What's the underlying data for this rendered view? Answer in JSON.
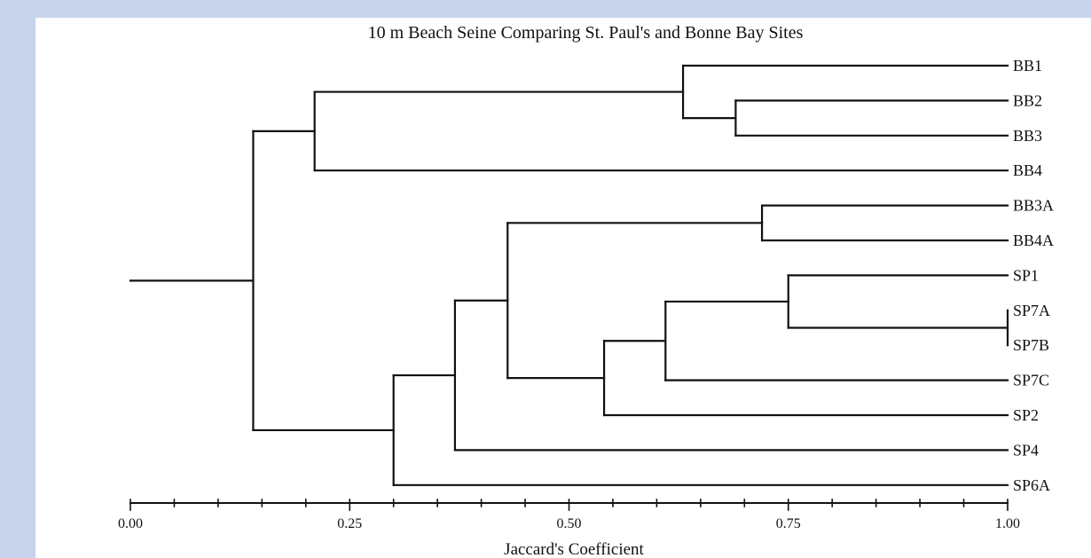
{
  "colors": {
    "background": "#c8d4ec",
    "panel": "#ffffff",
    "ink": "#111111"
  },
  "chart_data": {
    "type": "dendrogram",
    "title": "10 m Beach Seine Comparing St. Paul's and Bonne Bay Sites",
    "xlabel": "Jaccard's Coefficient",
    "xlim": [
      0,
      1
    ],
    "x_ticks": [
      0,
      0.25,
      0.5,
      0.75,
      1
    ],
    "x_tick_labels": [
      "0.00",
      "0.25",
      "0.50",
      "0.75",
      "1.00"
    ],
    "leaves": [
      "BB1",
      "BB2",
      "BB3",
      "BB4",
      "BB3A",
      "BB4A",
      "SP1",
      "SP7A",
      "SP7B",
      "SP7C",
      "SP2",
      "SP4",
      "SP6A"
    ],
    "merges": [
      {
        "id": "c1",
        "children": [
          "SP7A",
          "SP7B"
        ],
        "similarity": 1.0
      },
      {
        "id": "c2",
        "children": [
          "SP1",
          "c1"
        ],
        "similarity": 0.75
      },
      {
        "id": "c3",
        "children": [
          "BB3A",
          "BB4A"
        ],
        "similarity": 0.72
      },
      {
        "id": "c4",
        "children": [
          "BB2",
          "BB3"
        ],
        "similarity": 0.69
      },
      {
        "id": "c5",
        "children": [
          "BB1",
          "c4"
        ],
        "similarity": 0.63
      },
      {
        "id": "c6",
        "children": [
          "c2",
          "SP7C"
        ],
        "similarity": 0.61
      },
      {
        "id": "c7",
        "children": [
          "c6",
          "SP2"
        ],
        "similarity": 0.54
      },
      {
        "id": "c8",
        "children": [
          "c3",
          "c7"
        ],
        "similarity": 0.43
      },
      {
        "id": "c9",
        "children": [
          "c8",
          "SP4"
        ],
        "similarity": 0.37
      },
      {
        "id": "c10",
        "children": [
          "c9",
          "SP6A"
        ],
        "similarity": 0.3
      },
      {
        "id": "c11",
        "children": [
          "c5",
          "BB4"
        ],
        "similarity": 0.21
      },
      {
        "id": "c12",
        "children": [
          "c11",
          "c10"
        ],
        "similarity": 0.14
      }
    ],
    "root_stem_from": 0.0
  }
}
